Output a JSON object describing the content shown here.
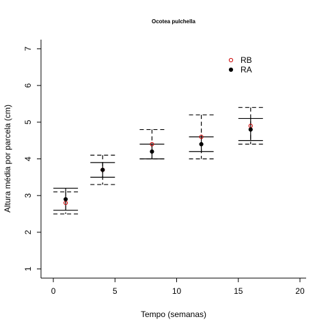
{
  "chart_data": {
    "type": "scatter",
    "title": "Ocotea pulchella",
    "xlabel": "Tempo (semanas)",
    "ylabel": "Altura média por parcela (cm)",
    "xlim": [
      -1,
      20.5
    ],
    "ylim": [
      0.75,
      7.25
    ],
    "xticks": [
      0,
      5,
      10,
      15,
      20
    ],
    "yticks": [
      1,
      2,
      3,
      4,
      5,
      6,
      7
    ],
    "legend_position": "top-right",
    "series": [
      {
        "name": "RB",
        "marker": "open-circle",
        "color": "#cc0000",
        "error_style": "dashed",
        "x": [
          1,
          4,
          8,
          12,
          16
        ],
        "y": [
          2.8,
          3.7,
          4.4,
          4.6,
          4.9
        ],
        "lower": [
          2.5,
          3.3,
          4.0,
          4.0,
          4.4
        ],
        "upper": [
          3.1,
          4.1,
          4.8,
          5.2,
          5.4
        ]
      },
      {
        "name": "RA",
        "marker": "filled-circle",
        "color": "#000000",
        "error_style": "solid",
        "x": [
          1,
          4,
          8,
          12,
          16
        ],
        "y": [
          2.9,
          3.7,
          4.2,
          4.4,
          4.8
        ],
        "lower": [
          2.6,
          3.5,
          4.0,
          4.2,
          4.5
        ],
        "upper": [
          3.2,
          3.9,
          4.4,
          4.6,
          5.1
        ]
      }
    ]
  }
}
